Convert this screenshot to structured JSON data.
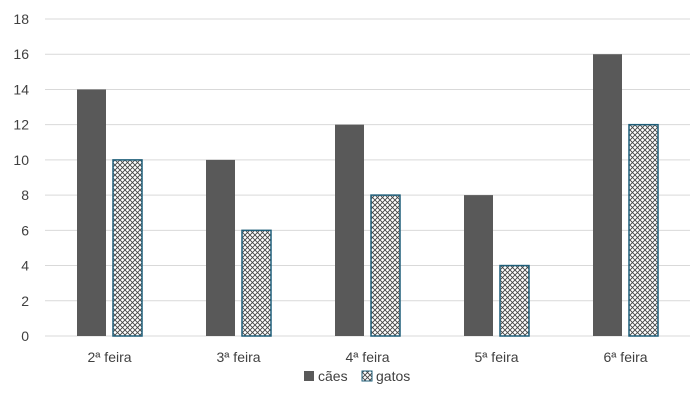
{
  "chart_data": {
    "type": "bar",
    "categories": [
      "2ª feira",
      "3ª feira",
      "4ª feira",
      "5ª feira",
      "6ª feira"
    ],
    "series": [
      {
        "name": "cães",
        "values": [
          14,
          10,
          12,
          8,
          16
        ],
        "fill": "#595959",
        "pattern": "solid"
      },
      {
        "name": "gatos",
        "values": [
          10,
          6,
          8,
          4,
          12
        ],
        "fill": "#ffffff",
        "stroke": "#1f5f7a",
        "pattern": "crosshatch"
      }
    ],
    "ylim": [
      0,
      18
    ],
    "yticks": [
      0,
      2,
      4,
      6,
      8,
      10,
      12,
      14,
      16,
      18
    ],
    "grid": true,
    "legend": "bottom-center",
    "title": "",
    "xlabel": "",
    "ylabel": ""
  }
}
